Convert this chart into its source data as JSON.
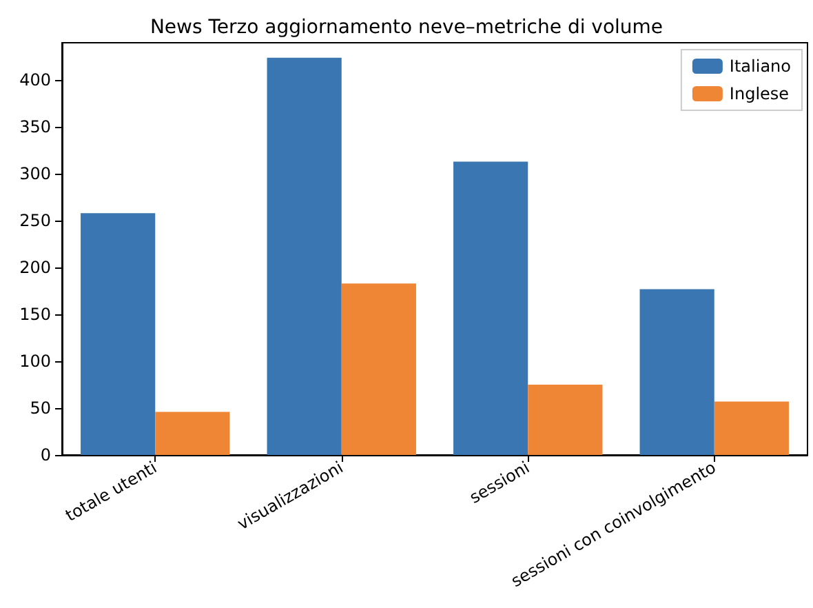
{
  "chart_data": {
    "type": "bar",
    "title": "News Terzo aggiornamento neve–metriche di volume",
    "categories": [
      "totale utenti",
      "visualizzazioni",
      "sessioni",
      "sessioni con coinvolgimento"
    ],
    "series": [
      {
        "name": "Italiano",
        "color": "#3a76b1",
        "values": [
          258,
          424,
          313,
          177
        ]
      },
      {
        "name": "Inglese",
        "color": "#ef8636",
        "values": [
          46,
          183,
          75,
          57
        ]
      }
    ],
    "ylim": [
      0,
      440
    ],
    "yticks": [
      0,
      50,
      100,
      150,
      200,
      250,
      300,
      350,
      400
    ],
    "grid": false,
    "legend": "top right"
  }
}
